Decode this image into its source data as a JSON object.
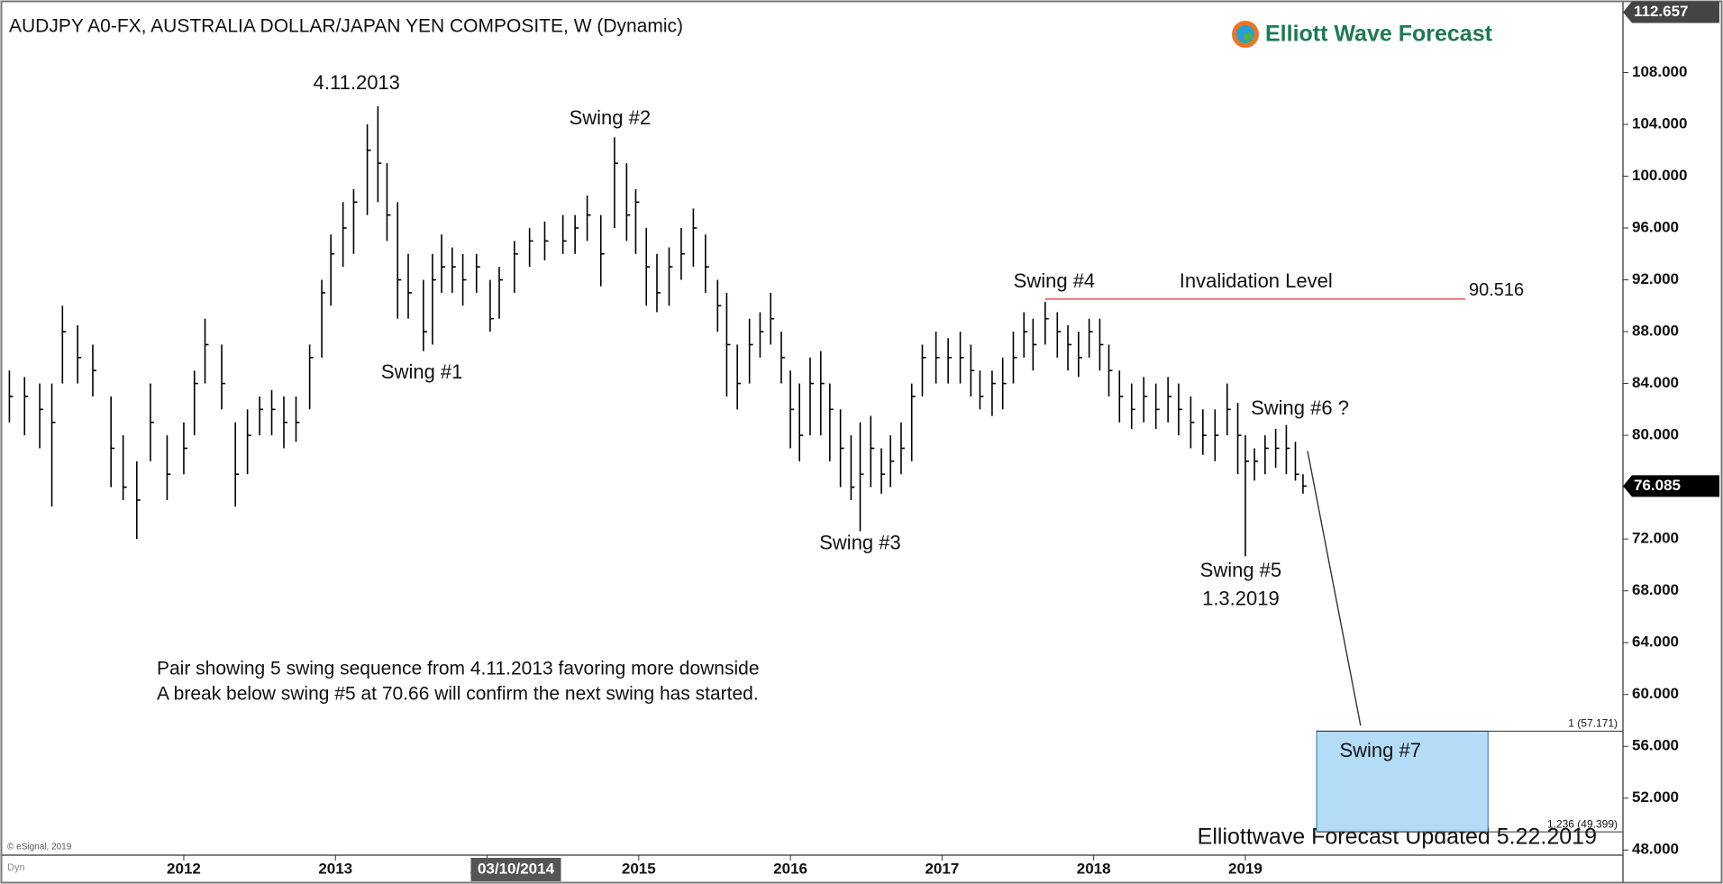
{
  "chart_data": {
    "type": "ohlc",
    "title": "AUDJPY A0-FX, AUSTRALIA DOLLAR/JAPAN YEN COMPOSITE, W (Dynamic)",
    "logo": "Elliott Wave Forecast",
    "footer": "Elliottwave Forecast Updated 5.22.2019",
    "copyright": "© eSignal, 2019",
    "corner_label": "Dyn",
    "notes": [
      "Pair showing 5 swing sequence from 4.11.2013 favoring more downside",
      "A break below swing #5 at 70.66 will confirm the next swing has started."
    ],
    "xlim": [
      2010.8,
      2021.49
    ],
    "ylim": [
      47.6,
      112.9
    ],
    "xticks": [
      2012,
      2013,
      2014,
      2015,
      2016,
      2017,
      2018,
      2019
    ],
    "cursor_label": {
      "value": 2014.19,
      "label": "03/10/2014"
    },
    "yticks": [
      {
        "value": 48,
        "label": "48.000"
      },
      {
        "value": 52,
        "label": "52.000"
      },
      {
        "value": 56,
        "label": "56.000"
      },
      {
        "value": 60,
        "label": "60.000"
      },
      {
        "value": 64,
        "label": "64.000"
      },
      {
        "value": 68,
        "label": "68.000"
      },
      {
        "value": 72,
        "label": "72.000"
      },
      {
        "value": 76,
        "label": "76.000"
      },
      {
        "value": 80,
        "label": "80.000"
      },
      {
        "value": 84,
        "label": "84.000"
      },
      {
        "value": 88,
        "label": "88.000"
      },
      {
        "value": 92,
        "label": "92.000"
      },
      {
        "value": 96,
        "label": "96.000"
      },
      {
        "value": 100,
        "label": "100.000"
      },
      {
        "value": 104,
        "label": "104.000"
      },
      {
        "value": 108,
        "label": "108.000"
      }
    ],
    "price_labels": [
      {
        "value": 112.657,
        "label": "112.657",
        "color": "#444444"
      },
      {
        "value": 76.085,
        "label": "76.085",
        "color": "#000000"
      }
    ],
    "color": "#000000",
    "bars": [
      {
        "x": 2010.85,
        "h": 85,
        "l": 81,
        "c": 83
      },
      {
        "x": 2010.95,
        "h": 84.5,
        "l": 80,
        "c": 83
      },
      {
        "x": 2011.05,
        "h": 84,
        "l": 79,
        "c": 82
      },
      {
        "x": 2011.13,
        "h": 84,
        "l": 74.5,
        "c": 81
      },
      {
        "x": 2011.2,
        "h": 90,
        "l": 84,
        "c": 88
      },
      {
        "x": 2011.3,
        "h": 88.5,
        "l": 84,
        "c": 86
      },
      {
        "x": 2011.4,
        "h": 87,
        "l": 83,
        "c": 85
      },
      {
        "x": 2011.52,
        "h": 83,
        "l": 76,
        "c": 79
      },
      {
        "x": 2011.6,
        "h": 80,
        "l": 75,
        "c": 76
      },
      {
        "x": 2011.69,
        "h": 78,
        "l": 72,
        "c": 75
      },
      {
        "x": 2011.78,
        "h": 84,
        "l": 78,
        "c": 81
      },
      {
        "x": 2011.89,
        "h": 80,
        "l": 75,
        "c": 77
      },
      {
        "x": 2012.0,
        "h": 81,
        "l": 77,
        "c": 79
      },
      {
        "x": 2012.07,
        "h": 85,
        "l": 80,
        "c": 84
      },
      {
        "x": 2012.14,
        "h": 89,
        "l": 84,
        "c": 87
      },
      {
        "x": 2012.25,
        "h": 87,
        "l": 82,
        "c": 84
      },
      {
        "x": 2012.34,
        "h": 81,
        "l": 74.5,
        "c": 77
      },
      {
        "x": 2012.42,
        "h": 82,
        "l": 77,
        "c": 80
      },
      {
        "x": 2012.5,
        "h": 83,
        "l": 80,
        "c": 82
      },
      {
        "x": 2012.58,
        "h": 83.5,
        "l": 80,
        "c": 82
      },
      {
        "x": 2012.66,
        "h": 83,
        "l": 79,
        "c": 81
      },
      {
        "x": 2012.74,
        "h": 83,
        "l": 79.5,
        "c": 81
      },
      {
        "x": 2012.83,
        "h": 87,
        "l": 82,
        "c": 86
      },
      {
        "x": 2012.91,
        "h": 92,
        "l": 86,
        "c": 91
      },
      {
        "x": 2012.97,
        "h": 95.5,
        "l": 90,
        "c": 94
      },
      {
        "x": 2013.05,
        "h": 98,
        "l": 93,
        "c": 96
      },
      {
        "x": 2013.12,
        "h": 99,
        "l": 94,
        "c": 98
      },
      {
        "x": 2013.21,
        "h": 104,
        "l": 97,
        "c": 102
      },
      {
        "x": 2013.28,
        "h": 105.4,
        "l": 98,
        "c": 101
      },
      {
        "x": 2013.34,
        "h": 101,
        "l": 95,
        "c": 97
      },
      {
        "x": 2013.41,
        "h": 98,
        "l": 89,
        "c": 92
      },
      {
        "x": 2013.48,
        "h": 94,
        "l": 89,
        "c": 91
      },
      {
        "x": 2013.58,
        "h": 92,
        "l": 86.5,
        "c": 88
      },
      {
        "x": 2013.64,
        "h": 94,
        "l": 87,
        "c": 92
      },
      {
        "x": 2013.7,
        "h": 95.5,
        "l": 91,
        "c": 93
      },
      {
        "x": 2013.77,
        "h": 94.5,
        "l": 91,
        "c": 93
      },
      {
        "x": 2013.84,
        "h": 94,
        "l": 90,
        "c": 92
      },
      {
        "x": 2013.93,
        "h": 94,
        "l": 91,
        "c": 93
      },
      {
        "x": 2014.02,
        "h": 92,
        "l": 88,
        "c": 89
      },
      {
        "x": 2014.08,
        "h": 93,
        "l": 89,
        "c": 92
      },
      {
        "x": 2014.18,
        "h": 95,
        "l": 91,
        "c": 94
      },
      {
        "x": 2014.28,
        "h": 96,
        "l": 93,
        "c": 95
      },
      {
        "x": 2014.38,
        "h": 96.5,
        "l": 93.5,
        "c": 95
      },
      {
        "x": 2014.5,
        "h": 97,
        "l": 94,
        "c": 95
      },
      {
        "x": 2014.58,
        "h": 97,
        "l": 94,
        "c": 96
      },
      {
        "x": 2014.66,
        "h": 98.5,
        "l": 95,
        "c": 97
      },
      {
        "x": 2014.75,
        "h": 97,
        "l": 91.5,
        "c": 94
      },
      {
        "x": 2014.84,
        "h": 103,
        "l": 96,
        "c": 101
      },
      {
        "x": 2014.92,
        "h": 101,
        "l": 95,
        "c": 97
      },
      {
        "x": 2014.98,
        "h": 99,
        "l": 94,
        "c": 98
      },
      {
        "x": 2015.05,
        "h": 96,
        "l": 90,
        "c": 93
      },
      {
        "x": 2015.12,
        "h": 94,
        "l": 89.5,
        "c": 91
      },
      {
        "x": 2015.2,
        "h": 94.5,
        "l": 90,
        "c": 93
      },
      {
        "x": 2015.28,
        "h": 96,
        "l": 92,
        "c": 94
      },
      {
        "x": 2015.36,
        "h": 97.5,
        "l": 93,
        "c": 96
      },
      {
        "x": 2015.44,
        "h": 95.5,
        "l": 91,
        "c": 93
      },
      {
        "x": 2015.52,
        "h": 92,
        "l": 88,
        "c": 90
      },
      {
        "x": 2015.58,
        "h": 91,
        "l": 83,
        "c": 87
      },
      {
        "x": 2015.65,
        "h": 87,
        "l": 82,
        "c": 84
      },
      {
        "x": 2015.73,
        "h": 89,
        "l": 84,
        "c": 87
      },
      {
        "x": 2015.8,
        "h": 89.5,
        "l": 86,
        "c": 88
      },
      {
        "x": 2015.87,
        "h": 91,
        "l": 87,
        "c": 89
      },
      {
        "x": 2015.94,
        "h": 88,
        "l": 84,
        "c": 86
      },
      {
        "x": 2016.0,
        "h": 85,
        "l": 79,
        "c": 82
      },
      {
        "x": 2016.06,
        "h": 84,
        "l": 78,
        "c": 80
      },
      {
        "x": 2016.13,
        "h": 86,
        "l": 80,
        "c": 84
      },
      {
        "x": 2016.2,
        "h": 86.5,
        "l": 80,
        "c": 84
      },
      {
        "x": 2016.26,
        "h": 84,
        "l": 78,
        "c": 82
      },
      {
        "x": 2016.33,
        "h": 82,
        "l": 76,
        "c": 79
      },
      {
        "x": 2016.4,
        "h": 80,
        "l": 75,
        "c": 76
      },
      {
        "x": 2016.46,
        "h": 81,
        "l": 72.6,
        "c": 77
      },
      {
        "x": 2016.53,
        "h": 81.5,
        "l": 76,
        "c": 79
      },
      {
        "x": 2016.6,
        "h": 79,
        "l": 75.5,
        "c": 77
      },
      {
        "x": 2016.66,
        "h": 80,
        "l": 76,
        "c": 78
      },
      {
        "x": 2016.73,
        "h": 81,
        "l": 77,
        "c": 79
      },
      {
        "x": 2016.8,
        "h": 84,
        "l": 78,
        "c": 83
      },
      {
        "x": 2016.87,
        "h": 87,
        "l": 83,
        "c": 86
      },
      {
        "x": 2016.96,
        "h": 88,
        "l": 84,
        "c": 86
      },
      {
        "x": 2017.04,
        "h": 87.5,
        "l": 84,
        "c": 86
      },
      {
        "x": 2017.12,
        "h": 88,
        "l": 84,
        "c": 86
      },
      {
        "x": 2017.19,
        "h": 87,
        "l": 83,
        "c": 85
      },
      {
        "x": 2017.25,
        "h": 85,
        "l": 82,
        "c": 83
      },
      {
        "x": 2017.33,
        "h": 85,
        "l": 81.5,
        "c": 84
      },
      {
        "x": 2017.4,
        "h": 86,
        "l": 82,
        "c": 84
      },
      {
        "x": 2017.47,
        "h": 88,
        "l": 84,
        "c": 86
      },
      {
        "x": 2017.54,
        "h": 89.5,
        "l": 86,
        "c": 88
      },
      {
        "x": 2017.6,
        "h": 89,
        "l": 85,
        "c": 87
      },
      {
        "x": 2017.68,
        "h": 90.3,
        "l": 87,
        "c": 89
      },
      {
        "x": 2017.76,
        "h": 89.5,
        "l": 86,
        "c": 88
      },
      {
        "x": 2017.83,
        "h": 88.5,
        "l": 85,
        "c": 87
      },
      {
        "x": 2017.9,
        "h": 88,
        "l": 84.5,
        "c": 86
      },
      {
        "x": 2017.97,
        "h": 89,
        "l": 86,
        "c": 88
      },
      {
        "x": 2018.04,
        "h": 89,
        "l": 85,
        "c": 87
      },
      {
        "x": 2018.1,
        "h": 87,
        "l": 83,
        "c": 85
      },
      {
        "x": 2018.17,
        "h": 85,
        "l": 81,
        "c": 83
      },
      {
        "x": 2018.25,
        "h": 84,
        "l": 80.5,
        "c": 82
      },
      {
        "x": 2018.33,
        "h": 84.5,
        "l": 81,
        "c": 83
      },
      {
        "x": 2018.41,
        "h": 84,
        "l": 80.5,
        "c": 82
      },
      {
        "x": 2018.49,
        "h": 84.5,
        "l": 81,
        "c": 83
      },
      {
        "x": 2018.56,
        "h": 84,
        "l": 80,
        "c": 82
      },
      {
        "x": 2018.64,
        "h": 83,
        "l": 79,
        "c": 81
      },
      {
        "x": 2018.72,
        "h": 82,
        "l": 78.5,
        "c": 80
      },
      {
        "x": 2018.8,
        "h": 82,
        "l": 78,
        "c": 80
      },
      {
        "x": 2018.88,
        "h": 84,
        "l": 80,
        "c": 82
      },
      {
        "x": 2018.95,
        "h": 82.5,
        "l": 77,
        "c": 80
      },
      {
        "x": 2019.0,
        "h": 80,
        "l": 70.66,
        "c": 78
      },
      {
        "x": 2019.06,
        "h": 79,
        "l": 76.5,
        "c": 78
      },
      {
        "x": 2019.13,
        "h": 80,
        "l": 77,
        "c": 79
      },
      {
        "x": 2019.2,
        "h": 80.5,
        "l": 77.5,
        "c": 79
      },
      {
        "x": 2019.27,
        "h": 80.8,
        "l": 77,
        "c": 79
      },
      {
        "x": 2019.33,
        "h": 79.5,
        "l": 76.5,
        "c": 77
      },
      {
        "x": 2019.38,
        "h": 77,
        "l": 75.5,
        "c": 76.085
      }
    ],
    "annotations": [
      {
        "text": "4.11.2013",
        "x": 2013.14,
        "y": 107.1
      },
      {
        "text": "Swing #1",
        "x": 2013.57,
        "y": 84.8
      },
      {
        "text": "Swing #2",
        "x": 2014.81,
        "y": 104.4
      },
      {
        "text": "Swing #3",
        "x": 2016.46,
        "y": 71.6
      },
      {
        "text": "Swing #4",
        "x": 2017.74,
        "y": 91.8
      },
      {
        "text": "Invalidation Level",
        "x": 2019.07,
        "y": 91.8
      },
      {
        "text": "Swing #6 ?",
        "x": 2019.36,
        "y": 82.0
      },
      {
        "text": "Swing #5",
        "x": 2018.97,
        "y": 69.5
      },
      {
        "text": "1.3.2019",
        "x": 2018.97,
        "y": 67.3
      },
      {
        "text": "Swing #7",
        "x": 2019.89,
        "y": 55.6
      }
    ],
    "invalidation": {
      "value": 90.516,
      "label": "90.516",
      "x": [
        2017.68,
        2020.45
      ],
      "color": "#e03030"
    },
    "projection": {
      "x": [
        2019.41,
        2019.76
      ],
      "y": [
        78.8,
        57.6
      ],
      "color": "#333333"
    },
    "target_zone": {
      "x": [
        2019.47,
        2020.6
      ],
      "top": 57.171,
      "bottom": 49.399,
      "top_label": "1 (57.171)",
      "bottom_label": "1.236 (49.399)",
      "color": "#b3dcf7"
    }
  }
}
